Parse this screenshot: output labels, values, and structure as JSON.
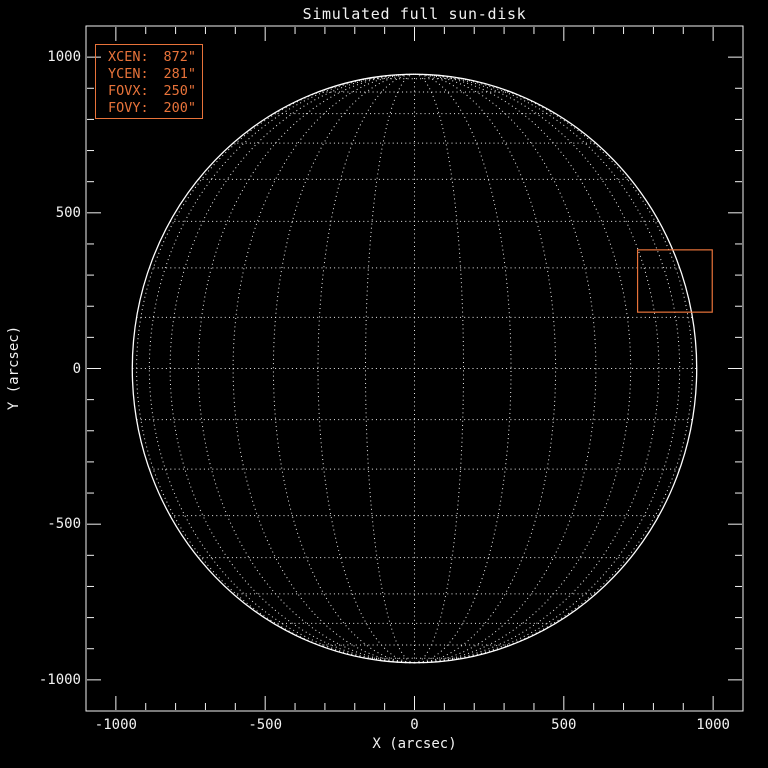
{
  "window": {
    "background": "#000000",
    "foreground": "#f2f2f2"
  },
  "chart_data": {
    "type": "line",
    "title": "Simulated full sun-disk",
    "xlabel": "X (arcsec)",
    "ylabel": "Y (arcsec)",
    "xlim": [
      -1100,
      1100
    ],
    "ylim": [
      -1100,
      1100
    ],
    "x_major_ticks": [
      -1000,
      -500,
      0,
      500,
      1000
    ],
    "x_major_tick_labels": [
      "-1000",
      "-500",
      "0",
      "500",
      "1000"
    ],
    "y_major_ticks": [
      -1000,
      -500,
      0,
      500,
      1000
    ],
    "y_major_tick_labels": [
      "-1000",
      "-500",
      "0",
      "500",
      "1000"
    ],
    "minor_tick_step": 100,
    "ticks_direction": "inward",
    "grid": false,
    "axes_color": "#f2f2f2",
    "solar_disk": {
      "center_arcsec": [
        0,
        0
      ],
      "radius_arcsec": 945,
      "limb_style": "solid",
      "limb_color": "#ffffff",
      "grid_spacing_deg": 10,
      "grid_style": "dotted",
      "grid_color": "#ffffff"
    },
    "fov_box": {
      "xcen_arcsec": 872,
      "ycen_arcsec": 281,
      "fovx_arcsec": 250,
      "fovy_arcsec": 200,
      "color": "#e8733a"
    },
    "legend_position": "top-left"
  },
  "annotation": {
    "color": "#e8733a",
    "lines": [
      {
        "label": "XCEN:",
        "value": "872\""
      },
      {
        "label": "YCEN:",
        "value": "281\""
      },
      {
        "label": "FOVX:",
        "value": "250\""
      },
      {
        "label": "FOVY:",
        "value": "200\""
      }
    ]
  }
}
